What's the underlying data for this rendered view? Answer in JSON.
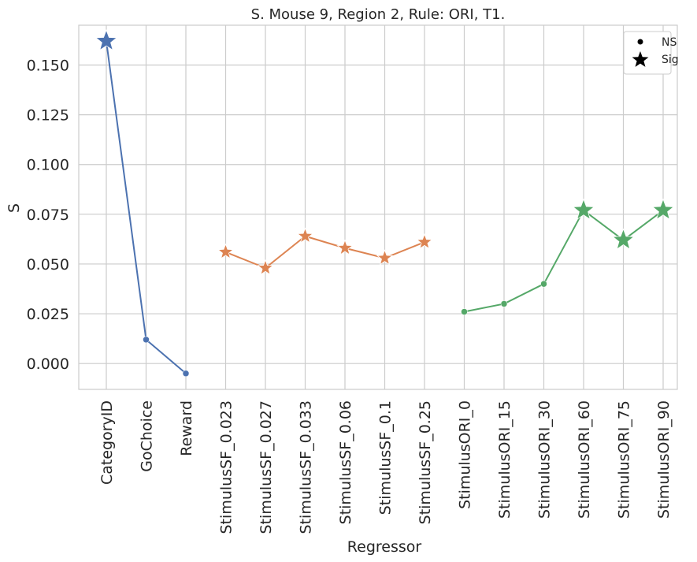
{
  "chart_data": {
    "type": "line",
    "title": "S. Mouse 9, Region 2, Rule: ORI, T1.",
    "xlabel": "Regressor",
    "ylabel": "S",
    "ylim": [
      -0.013,
      0.17
    ],
    "yticks": [
      "0.000",
      "0.025",
      "0.050",
      "0.075",
      "0.100",
      "0.125",
      "0.150"
    ],
    "yticks_values": [
      0.0,
      0.025,
      0.05,
      0.075,
      0.1,
      0.125,
      0.15
    ],
    "grid": true,
    "categories": [
      "CategoryID",
      "GoChoice",
      "Reward",
      "StimulusSF_0.023",
      "StimulusSF_0.027",
      "StimulusSF_0.033",
      "StimulusSF_0.06",
      "StimulusSF_0.1",
      "StimulusSF_0.25",
      "StimulusORI_0",
      "StimulusORI_15",
      "StimulusORI_30",
      "StimulusORI_60",
      "StimulusORI_75",
      "StimulusORI_90"
    ],
    "series": [
      {
        "color": "#4c72b0",
        "points": [
          {
            "x": "CategoryID",
            "y": 0.162,
            "sig": "Sig",
            "size": "large"
          },
          {
            "x": "GoChoice",
            "y": 0.012,
            "sig": "NS"
          },
          {
            "x": "Reward",
            "y": -0.005,
            "sig": "NS"
          }
        ]
      },
      {
        "color": "#dd8452",
        "points": [
          {
            "x": "StimulusSF_0.023",
            "y": 0.056,
            "sig": "Sig"
          },
          {
            "x": "StimulusSF_0.027",
            "y": 0.048,
            "sig": "Sig"
          },
          {
            "x": "StimulusSF_0.033",
            "y": 0.064,
            "sig": "Sig"
          },
          {
            "x": "StimulusSF_0.06",
            "y": 0.058,
            "sig": "Sig"
          },
          {
            "x": "StimulusSF_0.1",
            "y": 0.053,
            "sig": "Sig"
          },
          {
            "x": "StimulusSF_0.25",
            "y": 0.061,
            "sig": "Sig"
          }
        ]
      },
      {
        "color": "#55a868",
        "points": [
          {
            "x": "StimulusORI_0",
            "y": 0.026,
            "sig": "NS"
          },
          {
            "x": "StimulusORI_15",
            "y": 0.03,
            "sig": "NS"
          },
          {
            "x": "StimulusORI_30",
            "y": 0.04,
            "sig": "NS"
          },
          {
            "x": "StimulusORI_60",
            "y": 0.077,
            "sig": "Sig",
            "size": "large"
          },
          {
            "x": "StimulusORI_75",
            "y": 0.062,
            "sig": "Sig",
            "size": "large"
          },
          {
            "x": "StimulusORI_90",
            "y": 0.077,
            "sig": "Sig",
            "size": "large"
          }
        ]
      }
    ],
    "legend": {
      "placement": "top-right",
      "entries": [
        {
          "label": "NS",
          "marker": "dot"
        },
        {
          "label": "Sig",
          "marker": "star"
        }
      ]
    }
  }
}
